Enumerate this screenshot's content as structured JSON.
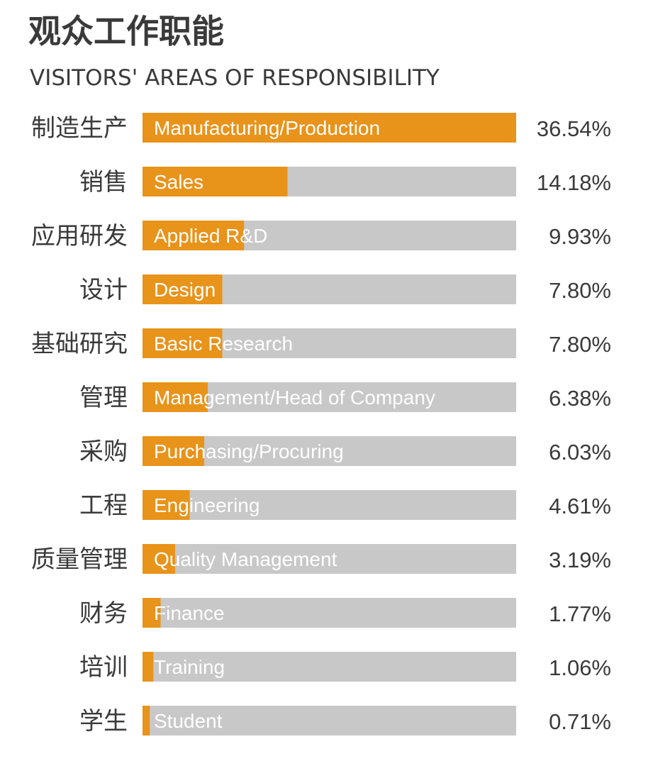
{
  "chart_data": {
    "type": "bar",
    "orientation": "horizontal",
    "title": "观众工作职能",
    "subtitle": "VISITORS' AREAS OF RESPONSIBILITY",
    "categories_zh": [
      "制造生产",
      "销售",
      "应用研发",
      "设计",
      "基础研究",
      "管理",
      "采购",
      "工程",
      "质量管理",
      "财务",
      "培训",
      "学生"
    ],
    "categories": [
      "Manufacturing/Production",
      "Sales",
      "Applied R&D",
      "Design",
      "Basic Research",
      "Management/Head of Company",
      "Purchasing/Procuring",
      "Engineering",
      "Quality Management",
      "Finance",
      "Training",
      "Student"
    ],
    "values": [
      36.54,
      14.18,
      9.93,
      7.8,
      7.8,
      6.38,
      6.03,
      4.61,
      3.19,
      1.77,
      1.06,
      0.71
    ],
    "value_labels": [
      "36.54%",
      "14.18%",
      "9.93%",
      "7.80%",
      "7.80%",
      "6.38%",
      "6.03%",
      "4.61%",
      "3.19%",
      "1.77%",
      "1.06%",
      "0.71%"
    ],
    "xlim": [
      0,
      36.54
    ],
    "grid": false,
    "colors": {
      "bar": "#e8931a",
      "track": "#c8c8c8",
      "bar_text": "#ffffff",
      "label_text": "#3a3a3a"
    }
  }
}
